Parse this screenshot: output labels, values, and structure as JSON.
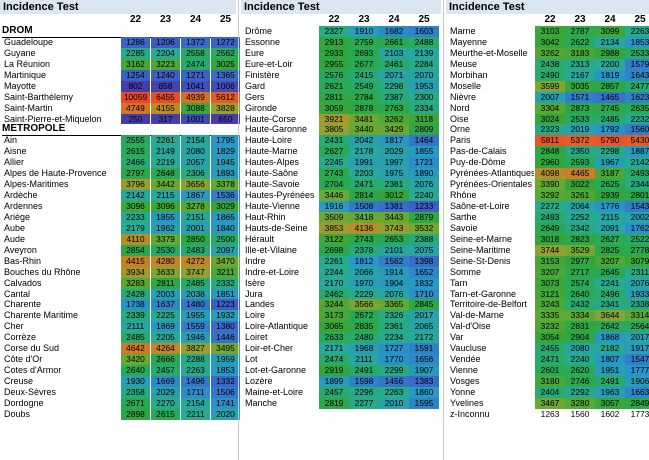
{
  "colors": {
    "scale": [
      "#4b4fb6",
      "#2a7fd0",
      "#2bb0c6",
      "#24b05a",
      "#7cbd3a",
      "#b6a23a",
      "#d87a2a",
      "#e8503a"
    ]
  },
  "panels": [
    {
      "title": "Incidence Test",
      "years": [
        "22",
        "23",
        "24",
        "25"
      ],
      "rows": [
        {
          "type": "section",
          "label": "DROM"
        },
        {
          "label": "Guadeloupe",
          "values": [
            1286,
            1206,
            1372,
            1272
          ]
        },
        {
          "label": "Guyane",
          "values": [
            2285,
            2204,
            2558,
            2562
          ]
        },
        {
          "label": "La Réunion",
          "values": [
            3162,
            3223,
            2474,
            3025
          ]
        },
        {
          "label": "Martinique",
          "values": [
            1254,
            1240,
            1271,
            1365
          ]
        },
        {
          "label": "Mayotte",
          "values": [
            802,
            858,
            1041,
            1006
          ]
        },
        {
          "label": "Saint-Barthélemy",
          "values": [
            10059,
            6455,
            4939,
            5612
          ]
        },
        {
          "label": "Saint-Martin",
          "values": [
            4749,
            4155,
            3088,
            3828
          ]
        },
        {
          "label": "Saint-Pierre-et-Miquelon",
          "values": [
            250,
            317,
            1001,
            650
          ]
        },
        {
          "type": "section",
          "label": "METROPOLE"
        },
        {
          "label": "Ain",
          "values": [
            2555,
            2261,
            2154,
            1795
          ]
        },
        {
          "label": "Aisne",
          "values": [
            2615,
            2149,
            2080,
            1829
          ]
        },
        {
          "label": "Allier",
          "values": [
            2466,
            2219,
            2057,
            1945
          ]
        },
        {
          "label": "Alpes de Haute-Provence",
          "values": [
            2797,
            2648,
            2306,
            1893
          ]
        },
        {
          "label": "Alpes-Maritimes",
          "values": [
            3796,
            3442,
            3656,
            3378
          ]
        },
        {
          "label": "Ardèche",
          "values": [
            2142,
            2115,
            1867,
            1536
          ]
        },
        {
          "label": "Ardennes",
          "values": [
            3096,
            3096,
            3278,
            3029
          ]
        },
        {
          "label": "Ariège",
          "values": [
            2233,
            1855,
            2151,
            1865
          ]
        },
        {
          "label": "Aube",
          "values": [
            2179,
            1962,
            2001,
            1840
          ]
        },
        {
          "label": "Aude",
          "values": [
            4110,
            3379,
            2850,
            2500
          ]
        },
        {
          "label": "Aveyron",
          "values": [
            2854,
            2530,
            2483,
            2097
          ]
        },
        {
          "label": "Bas-Rhin",
          "values": [
            4415,
            4280,
            4272,
            3470
          ]
        },
        {
          "label": "Bouches du Rhône",
          "values": [
            3934,
            3633,
            3747,
            3211
          ]
        },
        {
          "label": "Calvados",
          "values": [
            3283,
            2811,
            2485,
            2332
          ]
        },
        {
          "label": "Cantal",
          "values": [
            2428,
            2003,
            2038,
            1851
          ]
        },
        {
          "label": "Charente",
          "values": [
            1738,
            1637,
            1480,
            1223
          ]
        },
        {
          "label": "Charente Maritime",
          "values": [
            2339,
            2225,
            1955,
            1932
          ]
        },
        {
          "label": "Cher",
          "values": [
            2111,
            1869,
            1559,
            1380
          ]
        },
        {
          "label": "Corrèze",
          "values": [
            2485,
            2205,
            1946,
            1446
          ]
        },
        {
          "label": "Corse du Sud",
          "values": [
            4642,
            4264,
            3827,
            3495
          ]
        },
        {
          "label": "Côte d'Or",
          "values": [
            3420,
            2666,
            2288,
            1959
          ]
        },
        {
          "label": "Cotes d'Armor",
          "values": [
            2640,
            2457,
            2263,
            1853
          ]
        },
        {
          "label": "Creuse",
          "values": [
            1930,
            1669,
            1496,
            1332
          ]
        },
        {
          "label": "Deux-Sèvres",
          "values": [
            2358,
            2029,
            1711,
            1506
          ]
        },
        {
          "label": "Dordogne",
          "values": [
            2671,
            2270,
            2154,
            1741
          ]
        },
        {
          "label": "Doubs",
          "values": [
            2898,
            2615,
            2211,
            2020
          ]
        }
      ]
    },
    {
      "title": "Incidence Test",
      "years": [
        "22",
        "23",
        "24",
        "25"
      ],
      "rows": [
        {
          "label": "Drôme",
          "values": [
            2327,
            1910,
            1682,
            1603
          ]
        },
        {
          "label": "Essonne",
          "values": [
            2913,
            2759,
            2661,
            2488
          ]
        },
        {
          "label": "Eure",
          "values": [
            2933,
            2693,
            2103,
            2139
          ]
        },
        {
          "label": "Eure-et-Loir",
          "values": [
            2955,
            2677,
            2461,
            2284
          ]
        },
        {
          "label": "Finistère",
          "values": [
            2576,
            2415,
            2071,
            2070
          ]
        },
        {
          "label": "Gard",
          "values": [
            2621,
            2549,
            2298,
            1953
          ]
        },
        {
          "label": "Gers",
          "values": [
            2811,
            2784,
            2387,
            2300
          ]
        },
        {
          "label": "Gironde",
          "values": [
            3059,
            2878,
            2763,
            2334
          ]
        },
        {
          "label": "Haute-Corse",
          "values": [
            3921,
            3481,
            3262,
            3118
          ]
        },
        {
          "label": "Haute-Garonne",
          "values": [
            3805,
            3440,
            3429,
            2809
          ]
        },
        {
          "label": "Haute-Loire",
          "values": [
            2431,
            2042,
            1817,
            1464
          ]
        },
        {
          "label": "Haute-Marne",
          "values": [
            2627,
            2178,
            2029,
            1855
          ]
        },
        {
          "label": "Hautes-Alpes",
          "values": [
            2245,
            1991,
            1997,
            1721
          ]
        },
        {
          "label": "Haute-Saône",
          "values": [
            2743,
            2203,
            1975,
            1890
          ]
        },
        {
          "label": "Haute-Savoie",
          "values": [
            2704,
            2471,
            2381,
            2076
          ]
        },
        {
          "label": "Hautes-Pyrénées",
          "values": [
            3446,
            2814,
            3012,
            2240
          ]
        },
        {
          "label": "Haute-Vienne",
          "values": [
            1916,
            1508,
            1381,
            1233
          ]
        },
        {
          "label": "Haut-Rhin",
          "values": [
            3509,
            3418,
            3443,
            2879
          ]
        },
        {
          "label": "Hauts-de-Seine",
          "values": [
            3853,
            4136,
            3743,
            3532
          ]
        },
        {
          "label": "Hérault",
          "values": [
            3122,
            2743,
            2653,
            2388
          ]
        },
        {
          "label": "Ille-et-Vilaine",
          "values": [
            2698,
            2378,
            2101,
            2075
          ]
        },
        {
          "label": "Indre",
          "values": [
            2261,
            1812,
            1562,
            1398
          ]
        },
        {
          "label": "Indre-et-Loire",
          "values": [
            2244,
            2066,
            1914,
            1652
          ]
        },
        {
          "label": "Isère",
          "values": [
            2170,
            1970,
            1904,
            1832
          ]
        },
        {
          "label": "Jura",
          "values": [
            2462,
            2229,
            2076,
            1710
          ]
        },
        {
          "label": "Landes",
          "values": [
            3244,
            3566,
            3365,
            2845
          ]
        },
        {
          "label": "Loire",
          "values": [
            3173,
            2672,
            2326,
            2017
          ]
        },
        {
          "label": "Loire-Atlantique",
          "values": [
            3065,
            2835,
            2361,
            2065
          ]
        },
        {
          "label": "Loiret",
          "values": [
            2633,
            2480,
            2234,
            2172
          ]
        },
        {
          "label": "Loir-et-Cher",
          "values": [
            2171,
            1968,
            1727,
            1591
          ]
        },
        {
          "label": "Lot",
          "values": [
            2474,
            2111,
            1770,
            1656
          ]
        },
        {
          "label": "Lot-et-Garonne",
          "values": [
            2919,
            2491,
            2299,
            1907
          ]
        },
        {
          "label": "Lozère",
          "values": [
            1899,
            1598,
            1456,
            1383
          ]
        },
        {
          "label": "Maine-et-Loire",
          "values": [
            2457,
            2296,
            2263,
            1860
          ]
        },
        {
          "label": "Manche",
          "values": [
            2819,
            2277,
            2010,
            1595
          ]
        }
      ]
    },
    {
      "title": "Incidence Test",
      "years": [
        "22",
        "23",
        "24",
        "25"
      ],
      "rows": [
        {
          "label": "Marne",
          "values": [
            3103,
            2787,
            3099,
            2263
          ]
        },
        {
          "label": "Mayenne",
          "values": [
            3042,
            2622,
            2134,
            1853
          ]
        },
        {
          "label": "Meurthe-et-Moselle",
          "values": [
            3262,
            3183,
            2988,
            2533
          ]
        },
        {
          "label": "Meuse",
          "values": [
            2438,
            2313,
            2200,
            1579
          ]
        },
        {
          "label": "Morbihan",
          "values": [
            2490,
            2167,
            1819,
            1643
          ]
        },
        {
          "label": "Moselle",
          "values": [
            3599,
            3035,
            2857,
            2477
          ]
        },
        {
          "label": "Nièvre",
          "values": [
            2007,
            1571,
            1465,
            1623
          ]
        },
        {
          "label": "Nord",
          "values": [
            3304,
            2873,
            2745,
            2635
          ]
        },
        {
          "label": "Oise",
          "values": [
            3024,
            2533,
            2485,
            2232
          ]
        },
        {
          "label": "Orne",
          "values": [
            2323,
            2019,
            1792,
            1560
          ]
        },
        {
          "label": "Paris",
          "values": [
            5811,
            5372,
            5790,
            5430
          ]
        },
        {
          "label": "Pas-de-Calais",
          "values": [
            2848,
            2350,
            2298,
            1887
          ]
        },
        {
          "label": "Puy-de-Dôme",
          "values": [
            2960,
            2593,
            1967,
            2142
          ]
        },
        {
          "label": "Pyrénées-Atlantiques",
          "values": [
            4098,
            4465,
            3187,
            2493
          ]
        },
        {
          "label": "Pyrénées-Orientales",
          "values": [
            3390,
            3022,
            2625,
            2344
          ]
        },
        {
          "label": "Rhône",
          "values": [
            3292,
            3261,
            2939,
            2801
          ]
        },
        {
          "label": "Saône-et-Loire",
          "values": [
            2272,
            2064,
            1776,
            1543
          ]
        },
        {
          "label": "Sarthe",
          "values": [
            2493,
            2252,
            2115,
            2002
          ]
        },
        {
          "label": "Savoie",
          "values": [
            2649,
            2342,
            2091,
            1762
          ]
        },
        {
          "label": "Seine-et-Marne",
          "values": [
            3018,
            2823,
            2627,
            2522
          ]
        },
        {
          "label": "Seine-Maritime",
          "values": [
            3744,
            3529,
            2825,
            2778
          ]
        },
        {
          "label": "Seine-St-Denis",
          "values": [
            3153,
            2977,
            3207,
            3079
          ]
        },
        {
          "label": "Somme",
          "values": [
            3207,
            2717,
            2645,
            2311
          ]
        },
        {
          "label": "Tarn",
          "values": [
            3073,
            2574,
            2241,
            2076
          ]
        },
        {
          "label": "Tarn-et-Garonne",
          "values": [
            3121,
            2640,
            2496,
            1933
          ]
        },
        {
          "label": "Territoire-de-Belfort",
          "values": [
            3243,
            2432,
            2341,
            2338
          ]
        },
        {
          "label": "Val-de-Marne",
          "values": [
            3335,
            3334,
            3644,
            3314
          ]
        },
        {
          "label": "Val-d'Oise",
          "values": [
            3232,
            2831,
            2642,
            2564
          ]
        },
        {
          "label": "Var",
          "values": [
            3054,
            2904,
            1868,
            2017
          ]
        },
        {
          "label": "Vaucluse",
          "values": [
            2455,
            2080,
            2182,
            1917
          ]
        },
        {
          "label": "Vendée",
          "values": [
            2471,
            2240,
            1807,
            1547
          ]
        },
        {
          "label": "Vienne",
          "values": [
            2601,
            2620,
            1951,
            1777
          ]
        },
        {
          "label": "Vosges",
          "values": [
            3180,
            2746,
            2491,
            1906
          ]
        },
        {
          "label": "Yonne",
          "values": [
            2404,
            2292,
            1963,
            1663
          ]
        },
        {
          "label": "Yvelines",
          "values": [
            3467,
            3280,
            3057,
            2849
          ]
        },
        {
          "label": "z-Inconnu",
          "values": [
            1263,
            1560,
            1602,
            1773
          ],
          "plain": true
        }
      ]
    }
  ]
}
